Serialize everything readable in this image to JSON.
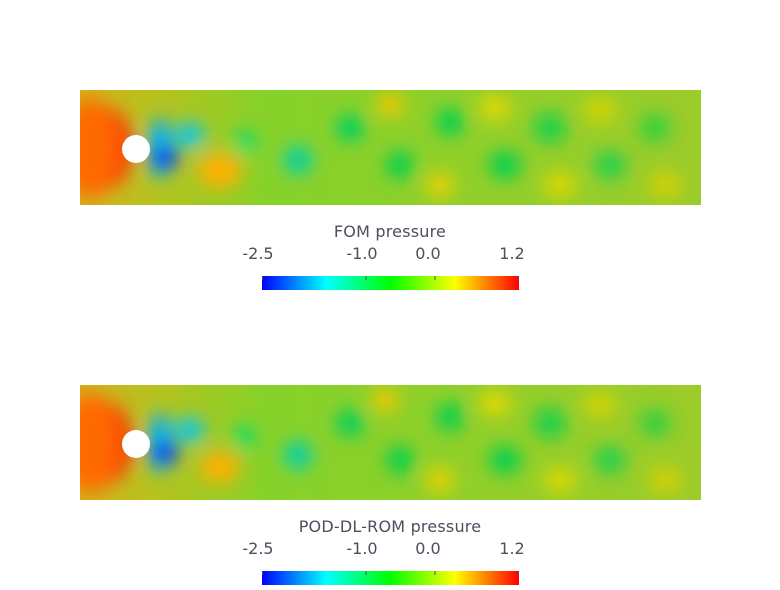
{
  "panels": [
    {
      "colorbar": {
        "title": "FOM pressure",
        "ticks": [
          {
            "label": "-2.5",
            "value": -2.5
          },
          {
            "label": "-1.0",
            "value": -1.0
          },
          {
            "label": "0.0",
            "value": 0.0
          },
          {
            "label": "1.2",
            "value": 1.2
          }
        ]
      }
    },
    {
      "colorbar": {
        "title": "POD-DL-ROM pressure",
        "ticks": [
          {
            "label": "-2.5",
            "value": -2.5
          },
          {
            "label": "-1.0",
            "value": -1.0
          },
          {
            "label": "0.0",
            "value": 0.0
          },
          {
            "label": "1.2",
            "value": 1.2
          }
        ]
      }
    }
  ],
  "colormap": {
    "range": [
      -2.5,
      1.2
    ],
    "stops": [
      "#0000ff",
      "#00ffff",
      "#00ff00",
      "#ffff00",
      "#ff0000"
    ],
    "background_color": "#96d22a"
  }
}
